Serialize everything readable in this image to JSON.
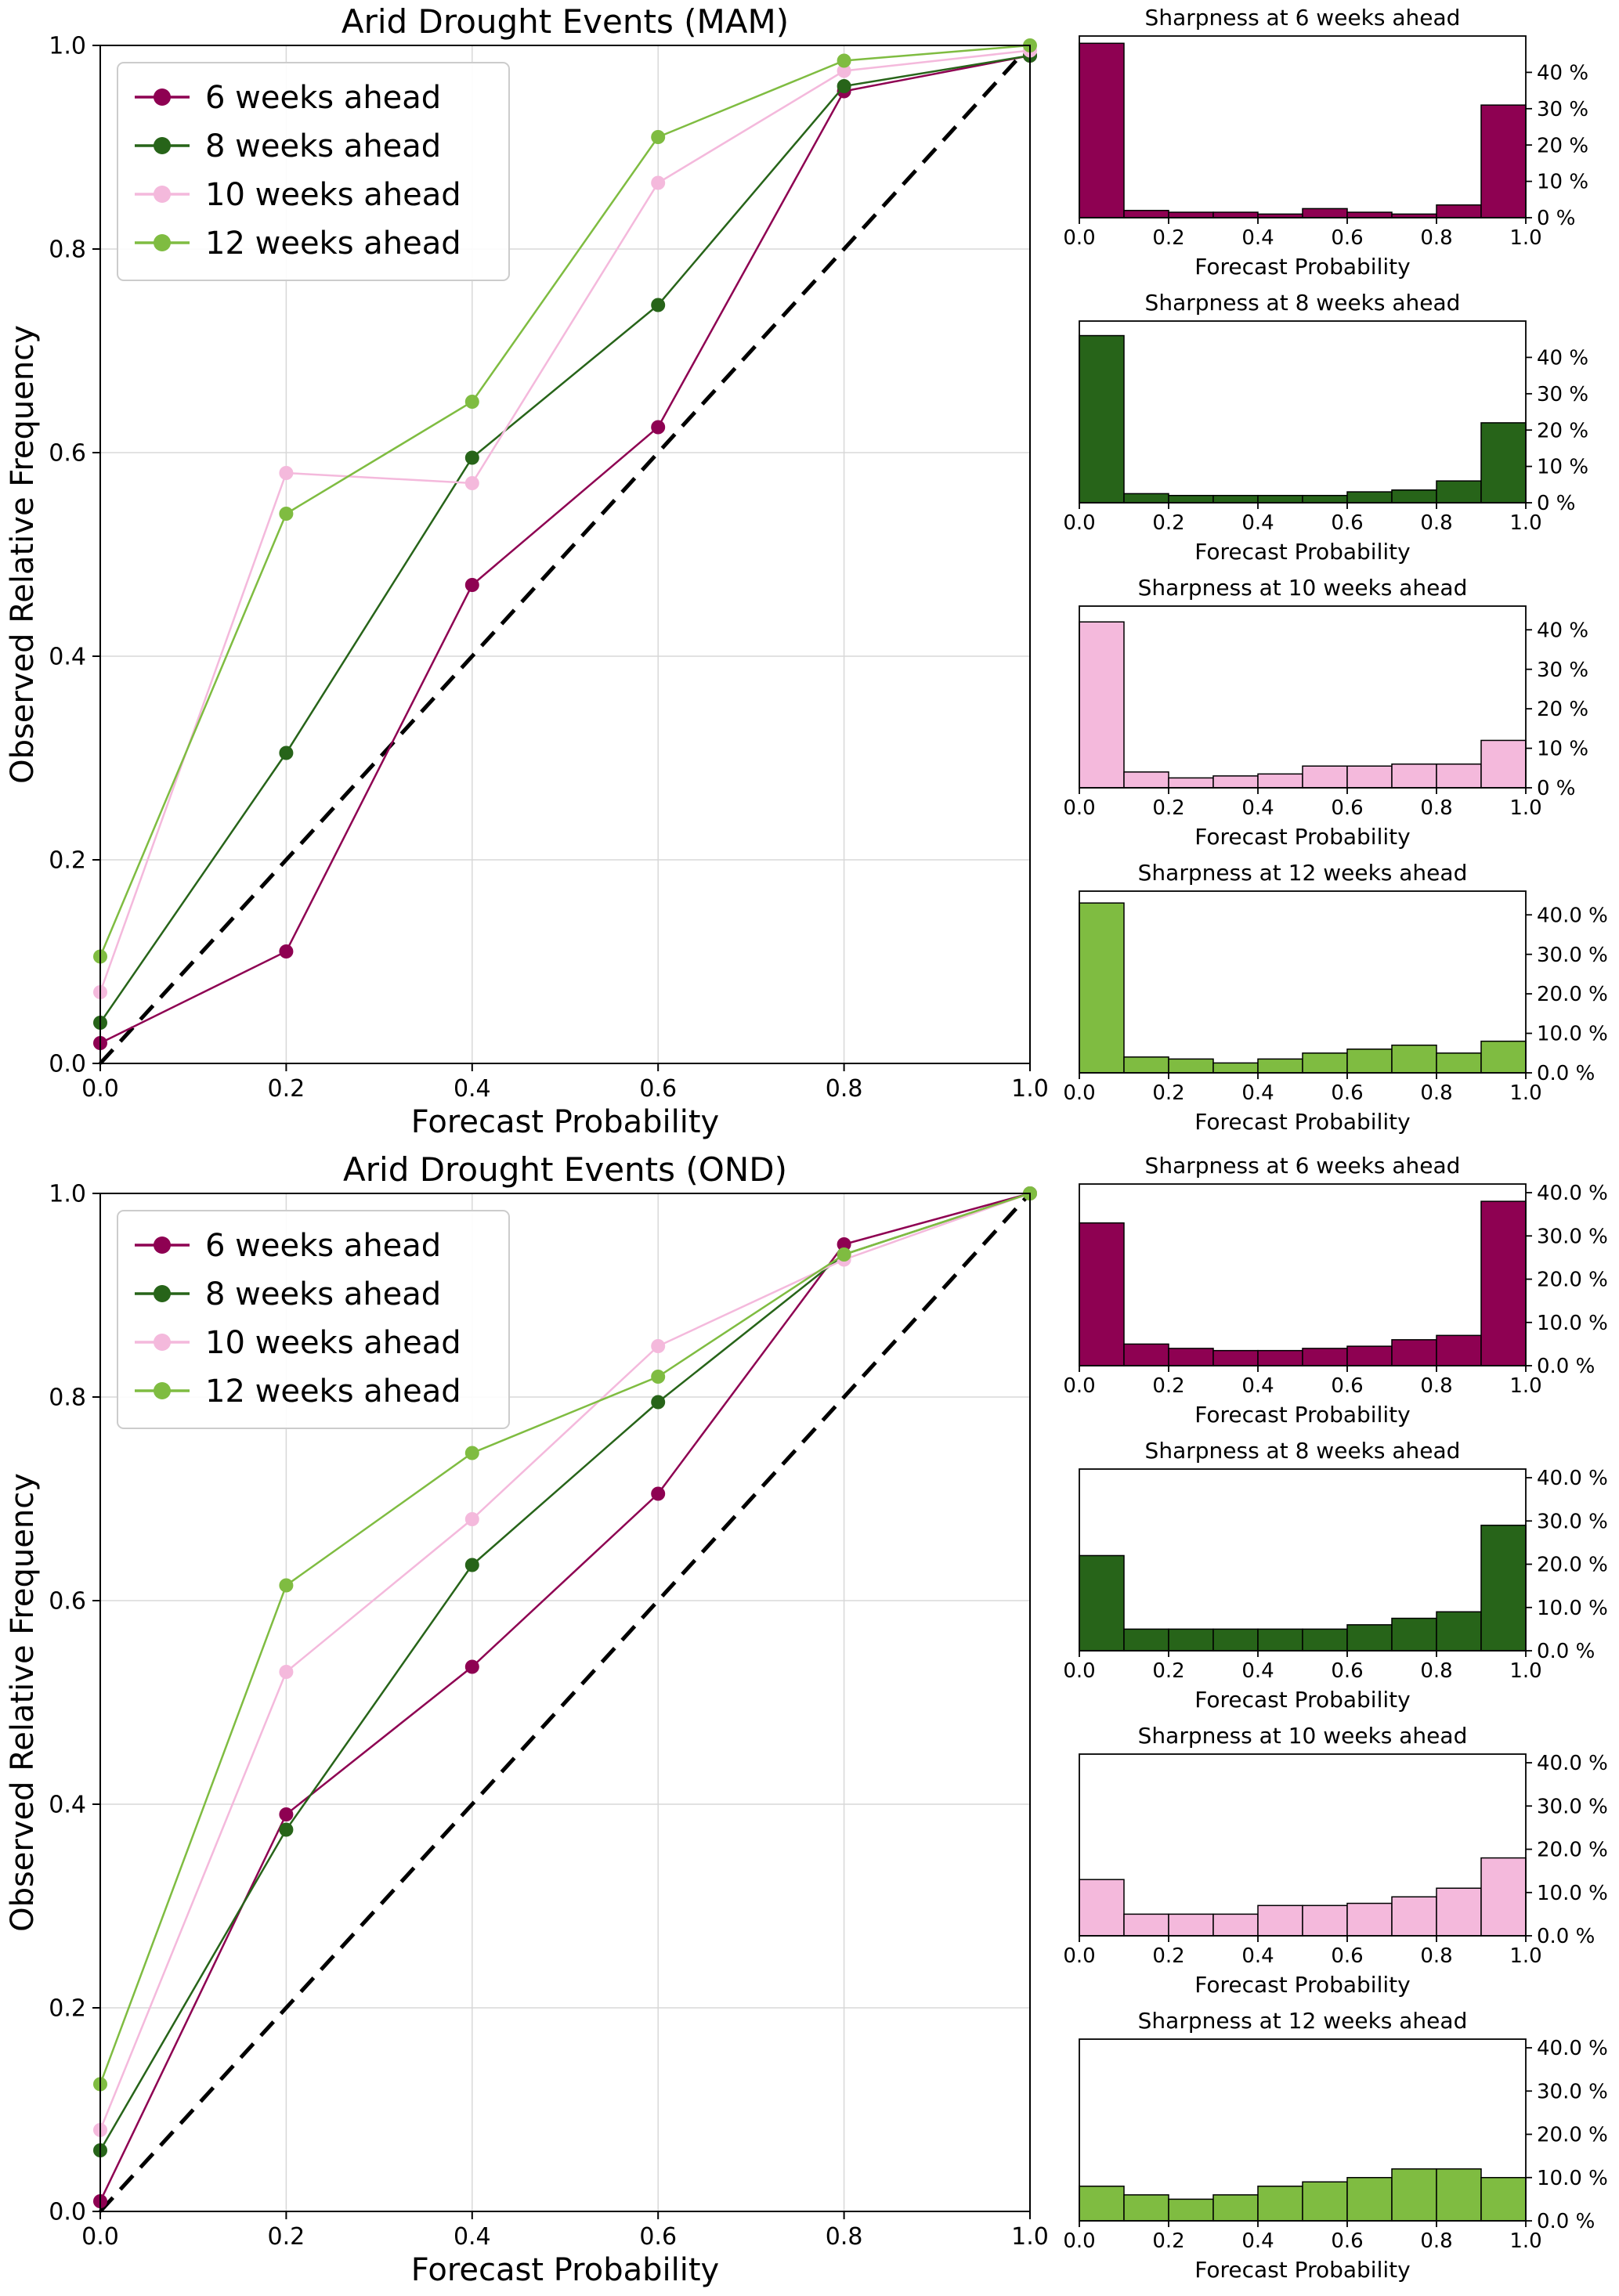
{
  "figure": {
    "panels": [
      {
        "name": "MAM",
        "main_title": "Arid Drought Events (MAM)"
      },
      {
        "name": "OND",
        "main_title": "Arid Drought Events (OND)"
      }
    ],
    "legend_labels": [
      "6 weeks ahead",
      "8 weeks ahead",
      "10 weeks ahead",
      "12 weeks ahead"
    ],
    "colors": {
      "weeks6": "#8e0152",
      "weeks8": "#276419",
      "weeks10": "#f4b9dc",
      "weeks12": "#7fbc41",
      "diagonal": "#000000",
      "grid": "#d8d8d8"
    }
  },
  "chart_data": [
    {
      "id": "mam-reliability",
      "type": "line",
      "title": "Arid Drought Events (MAM)",
      "xlabel": "Forecast Probability",
      "ylabel": "Observed Relative Frequency",
      "xlim": [
        0,
        1
      ],
      "ylim": [
        0,
        1
      ],
      "xticks": [
        "0.0",
        "0.2",
        "0.4",
        "0.6",
        "0.8",
        "1.0"
      ],
      "yticks": [
        "0.0",
        "0.2",
        "0.4",
        "0.6",
        "0.8",
        "1.0"
      ],
      "grid": true,
      "legend_position": "upper left",
      "diagonal_reference": true,
      "x": [
        0.0,
        0.2,
        0.4,
        0.6,
        0.8,
        1.0
      ],
      "series": [
        {
          "name": "6 weeks ahead",
          "color": "#8e0152",
          "values": [
            0.02,
            0.11,
            0.47,
            0.625,
            0.955,
            0.99
          ]
        },
        {
          "name": "8 weeks ahead",
          "color": "#276419",
          "values": [
            0.04,
            0.305,
            0.595,
            0.745,
            0.96,
            0.99
          ]
        },
        {
          "name": "10 weeks ahead",
          "color": "#f4b9dc",
          "values": [
            0.07,
            0.58,
            0.57,
            0.865,
            0.975,
            0.995
          ]
        },
        {
          "name": "12 weeks ahead",
          "color": "#7fbc41",
          "values": [
            0.105,
            0.54,
            0.65,
            0.91,
            0.985,
            1.0
          ]
        }
      ]
    },
    {
      "id": "mam-sharpness-6",
      "type": "bar",
      "title": "Sharpness at 6 weeks ahead",
      "xlabel": "Forecast Probability",
      "color": "#8e0152",
      "bin_edges": [
        0.0,
        0.1,
        0.2,
        0.3,
        0.4,
        0.5,
        0.6,
        0.7,
        0.8,
        0.9,
        1.0
      ],
      "values_pct": [
        48,
        2,
        1.5,
        1.5,
        1,
        2.5,
        1.5,
        1,
        3.5,
        31
      ],
      "ymax": 50,
      "yticks": [
        0,
        10,
        20,
        30,
        40
      ],
      "ytick_format": "int",
      "xticks": [
        "0.0",
        "0.2",
        "0.4",
        "0.6",
        "0.8",
        "1.0"
      ]
    },
    {
      "id": "mam-sharpness-8",
      "type": "bar",
      "title": "Sharpness at 8 weeks ahead",
      "xlabel": "Forecast Probability",
      "color": "#276419",
      "bin_edges": [
        0.0,
        0.1,
        0.2,
        0.3,
        0.4,
        0.5,
        0.6,
        0.7,
        0.8,
        0.9,
        1.0
      ],
      "values_pct": [
        46,
        2.5,
        2,
        2,
        2,
        2,
        3,
        3.5,
        6,
        22
      ],
      "ymax": 50,
      "yticks": [
        0,
        10,
        20,
        30,
        40
      ],
      "ytick_format": "int",
      "xticks": [
        "0.0",
        "0.2",
        "0.4",
        "0.6",
        "0.8",
        "1.0"
      ]
    },
    {
      "id": "mam-sharpness-10",
      "type": "bar",
      "title": "Sharpness at 10 weeks ahead",
      "xlabel": "Forecast Probability",
      "color": "#f4b9dc",
      "bin_edges": [
        0.0,
        0.1,
        0.2,
        0.3,
        0.4,
        0.5,
        0.6,
        0.7,
        0.8,
        0.9,
        1.0
      ],
      "values_pct": [
        42,
        4,
        2.5,
        3,
        3.5,
        5.5,
        5.5,
        6,
        6,
        12
      ],
      "ymax": 46,
      "yticks": [
        0,
        10,
        20,
        30,
        40
      ],
      "ytick_format": "int",
      "xticks": [
        "0.0",
        "0.2",
        "0.4",
        "0.6",
        "0.8",
        "1.0"
      ]
    },
    {
      "id": "mam-sharpness-12",
      "type": "bar",
      "title": "Sharpness at 12 weeks ahead",
      "xlabel": "Forecast Probability",
      "color": "#7fbc41",
      "bin_edges": [
        0.0,
        0.1,
        0.2,
        0.3,
        0.4,
        0.5,
        0.6,
        0.7,
        0.8,
        0.9,
        1.0
      ],
      "values_pct": [
        43,
        4,
        3.5,
        2.5,
        3.5,
        5,
        6,
        7,
        5,
        8
      ],
      "ymax": 46,
      "yticks": [
        0,
        10,
        20,
        30,
        40
      ],
      "ytick_format": "1f",
      "xticks": [
        "0.0",
        "0.2",
        "0.4",
        "0.6",
        "0.8",
        "1.0"
      ]
    },
    {
      "id": "ond-reliability",
      "type": "line",
      "title": "Arid Drought Events (OND)",
      "xlabel": "Forecast Probability",
      "ylabel": "Observed Relative Frequency",
      "xlim": [
        0,
        1
      ],
      "ylim": [
        0,
        1
      ],
      "xticks": [
        "0.0",
        "0.2",
        "0.4",
        "0.6",
        "0.8",
        "1.0"
      ],
      "yticks": [
        "0.0",
        "0.2",
        "0.4",
        "0.6",
        "0.8",
        "1.0"
      ],
      "grid": true,
      "legend_position": "upper left",
      "diagonal_reference": true,
      "x": [
        0.0,
        0.2,
        0.4,
        0.6,
        0.8,
        1.0
      ],
      "series": [
        {
          "name": "6 weeks ahead",
          "color": "#8e0152",
          "values": [
            0.01,
            0.39,
            0.535,
            0.705,
            0.95,
            1.0
          ]
        },
        {
          "name": "8 weeks ahead",
          "color": "#276419",
          "values": [
            0.06,
            0.375,
            0.635,
            0.795,
            0.94,
            1.0
          ]
        },
        {
          "name": "10 weeks ahead",
          "color": "#f4b9dc",
          "values": [
            0.08,
            0.53,
            0.68,
            0.85,
            0.935,
            1.0
          ]
        },
        {
          "name": "12 weeks ahead",
          "color": "#7fbc41",
          "values": [
            0.125,
            0.615,
            0.745,
            0.82,
            0.94,
            1.0
          ]
        }
      ]
    },
    {
      "id": "ond-sharpness-6",
      "type": "bar",
      "title": "Sharpness at 6 weeks ahead",
      "xlabel": "Forecast Probability",
      "color": "#8e0152",
      "bin_edges": [
        0.0,
        0.1,
        0.2,
        0.3,
        0.4,
        0.5,
        0.6,
        0.7,
        0.8,
        0.9,
        1.0
      ],
      "values_pct": [
        33,
        5,
        4,
        3.5,
        3.5,
        4,
        4.5,
        6,
        7,
        38
      ],
      "ymax": 42,
      "yticks": [
        0,
        10,
        20,
        30,
        40
      ],
      "ytick_format": "1f",
      "xticks": [
        "0.0",
        "0.2",
        "0.4",
        "0.6",
        "0.8",
        "1.0"
      ]
    },
    {
      "id": "ond-sharpness-8",
      "type": "bar",
      "title": "Sharpness at 8 weeks ahead",
      "xlabel": "Forecast Probability",
      "color": "#276419",
      "bin_edges": [
        0.0,
        0.1,
        0.2,
        0.3,
        0.4,
        0.5,
        0.6,
        0.7,
        0.8,
        0.9,
        1.0
      ],
      "values_pct": [
        22,
        5,
        5,
        5,
        5,
        5,
        6,
        7.5,
        9,
        29
      ],
      "ymax": 42,
      "yticks": [
        0,
        10,
        20,
        30,
        40
      ],
      "ytick_format": "1f",
      "xticks": [
        "0.0",
        "0.2",
        "0.4",
        "0.6",
        "0.8",
        "1.0"
      ]
    },
    {
      "id": "ond-sharpness-10",
      "type": "bar",
      "title": "Sharpness at 10 weeks ahead",
      "xlabel": "Forecast Probability",
      "color": "#f4b9dc",
      "bin_edges": [
        0.0,
        0.1,
        0.2,
        0.3,
        0.4,
        0.5,
        0.6,
        0.7,
        0.8,
        0.9,
        1.0
      ],
      "values_pct": [
        13,
        5,
        5,
        5,
        7,
        7,
        7.5,
        9,
        11,
        18
      ],
      "ymax": 42,
      "yticks": [
        0,
        10,
        20,
        30,
        40
      ],
      "ytick_format": "1f",
      "xticks": [
        "0.0",
        "0.2",
        "0.4",
        "0.6",
        "0.8",
        "1.0"
      ]
    },
    {
      "id": "ond-sharpness-12",
      "type": "bar",
      "title": "Sharpness at 12 weeks ahead",
      "xlabel": "Forecast Probability",
      "color": "#7fbc41",
      "bin_edges": [
        0.0,
        0.1,
        0.2,
        0.3,
        0.4,
        0.5,
        0.6,
        0.7,
        0.8,
        0.9,
        1.0
      ],
      "values_pct": [
        8,
        6,
        5,
        6,
        8,
        9,
        10,
        12,
        12,
        10
      ],
      "ymax": 42,
      "yticks": [
        0,
        10,
        20,
        30,
        40
      ],
      "ytick_format": "1f",
      "xticks": [
        "0.0",
        "0.2",
        "0.4",
        "0.6",
        "0.8",
        "1.0"
      ]
    }
  ]
}
